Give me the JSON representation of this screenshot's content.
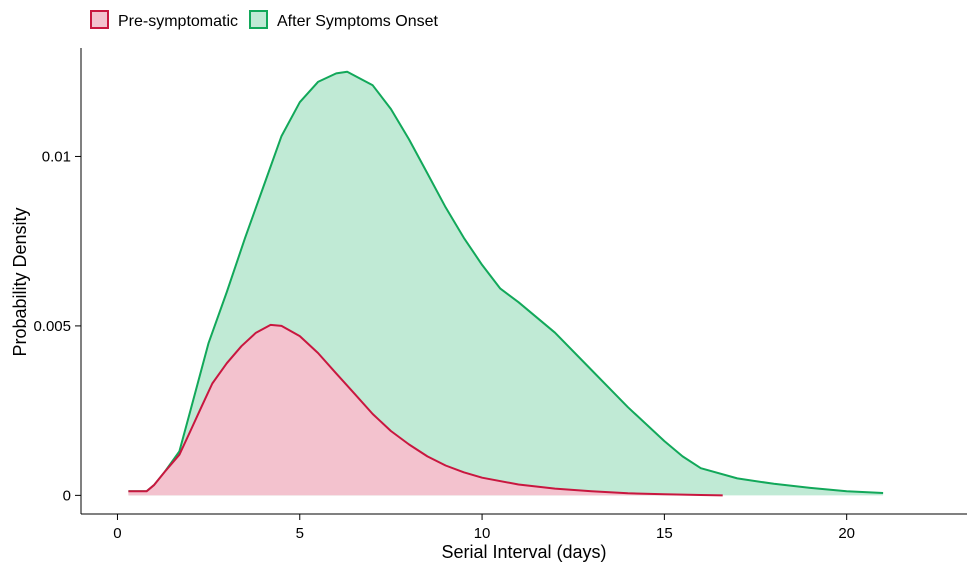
{
  "chart_data": {
    "type": "area",
    "xlabel": "Serial Interval (days)",
    "ylabel": "Probability Density",
    "xlim": [
      -1,
      23.3
    ],
    "ylim": [
      -0.00055,
      0.0132
    ],
    "x_ticks": [
      0,
      5,
      10,
      15,
      20
    ],
    "x_tick_labels": [
      "0",
      "5",
      "10",
      "15",
      "20"
    ],
    "y_ticks": [
      0,
      0.005,
      0.01
    ],
    "y_tick_labels": [
      "0",
      "0.005",
      "0.01"
    ],
    "grid": false,
    "legend_position": "top-left",
    "series": [
      {
        "name": "Pre-symptomatic",
        "stroke": "#c8173f",
        "fill": "#f3c2ce",
        "x": [
          0.3,
          0.8,
          1.0,
          1.3,
          1.7,
          2.0,
          2.3,
          2.6,
          3.0,
          3.4,
          3.8,
          4.2,
          4.5,
          5.0,
          5.5,
          6.0,
          6.5,
          7.0,
          7.5,
          8.0,
          8.5,
          9.0,
          9.5,
          10.0,
          11.0,
          12.0,
          13.0,
          14.0,
          15.0,
          16.0,
          16.6
        ],
        "values": [
          0.00012,
          0.00012,
          0.0003,
          0.0007,
          0.0012,
          0.0019,
          0.0026,
          0.0033,
          0.0039,
          0.0044,
          0.0048,
          0.00503,
          0.005,
          0.0047,
          0.0042,
          0.0036,
          0.003,
          0.0024,
          0.0019,
          0.0015,
          0.00115,
          0.00088,
          0.00068,
          0.00052,
          0.00032,
          0.0002,
          0.00012,
          6e-05,
          3e-05,
          1e-05,
          0.0
        ]
      },
      {
        "name": "After Symptoms Onset",
        "stroke": "#12a85a",
        "fill": "#c0ead5",
        "x": [
          0.3,
          0.8,
          1.0,
          1.3,
          1.7,
          2.0,
          2.5,
          3.0,
          3.5,
          4.0,
          4.5,
          5.0,
          5.5,
          6.0,
          6.3,
          7.0,
          7.5,
          8.0,
          8.5,
          9.0,
          9.5,
          10.0,
          10.5,
          11.0,
          12.0,
          13.0,
          14.0,
          15.0,
          15.5,
          16.0,
          17.0,
          18.0,
          19.0,
          20.0,
          21.0
        ],
        "values": [
          0.00012,
          0.00012,
          0.0003,
          0.0007,
          0.0013,
          0.0025,
          0.0045,
          0.006,
          0.0076,
          0.0091,
          0.0106,
          0.0116,
          0.0122,
          0.01245,
          0.0125,
          0.0121,
          0.0114,
          0.0105,
          0.0095,
          0.0085,
          0.0076,
          0.0068,
          0.0061,
          0.0057,
          0.0048,
          0.0037,
          0.0026,
          0.0016,
          0.00115,
          0.0008,
          0.0005,
          0.00034,
          0.00022,
          0.00012,
          7e-05
        ]
      }
    ]
  }
}
